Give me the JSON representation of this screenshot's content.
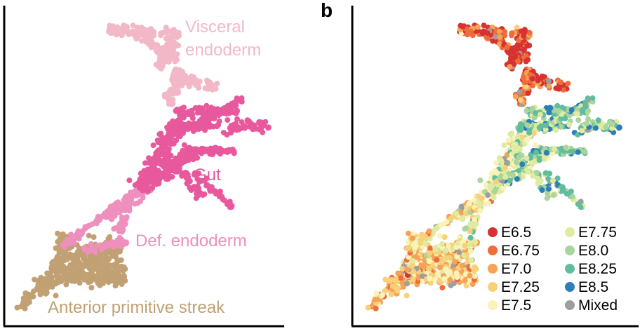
{
  "chart_data": [
    {
      "panel": "a",
      "panel_label": "",
      "type": "scatter",
      "colored_by": "cell type",
      "groups": [
        {
          "label": "Visceral endoderm",
          "label_lines": [
            "Visceral",
            "endoderm"
          ],
          "color": "#f2b8c8"
        },
        {
          "label": "Gut",
          "label_lines": [
            "Gut"
          ],
          "color": "#e8589c"
        },
        {
          "label": "Def. endoderm",
          "label_lines": [
            "Def. endoderm"
          ],
          "color": "#ee8fbe"
        },
        {
          "label": "Anterior primitive streak",
          "label_lines": [
            "Anterior primitive streak"
          ],
          "color": "#c1a174"
        }
      ],
      "axes": {
        "left": true,
        "bottom": true,
        "ticks": false
      },
      "grid": false
    },
    {
      "panel": "b",
      "panel_label": "b",
      "type": "scatter",
      "colored_by": "embryonic stage",
      "legend": {
        "placement": "bottom-right",
        "columns": 2,
        "entries": [
          {
            "label": "E6.5",
            "color": "#d63232"
          },
          {
            "label": "E6.75",
            "color": "#ef6c3c"
          },
          {
            "label": "E7.0",
            "color": "#f6a257"
          },
          {
            "label": "E7.25",
            "color": "#f8d07a"
          },
          {
            "label": "E7.5",
            "color": "#fbf2b8"
          },
          {
            "label": "E7.75",
            "color": "#dfeba0"
          },
          {
            "label": "E8.0",
            "color": "#aad59c"
          },
          {
            "label": "E8.25",
            "color": "#62bd9f"
          },
          {
            "label": "E8.5",
            "color": "#2d7fb8"
          },
          {
            "label": "Mixed",
            "color": "#9e9e9e"
          }
        ]
      },
      "axes": {
        "left": true,
        "bottom": true,
        "ticks": false
      },
      "grid": false
    }
  ]
}
